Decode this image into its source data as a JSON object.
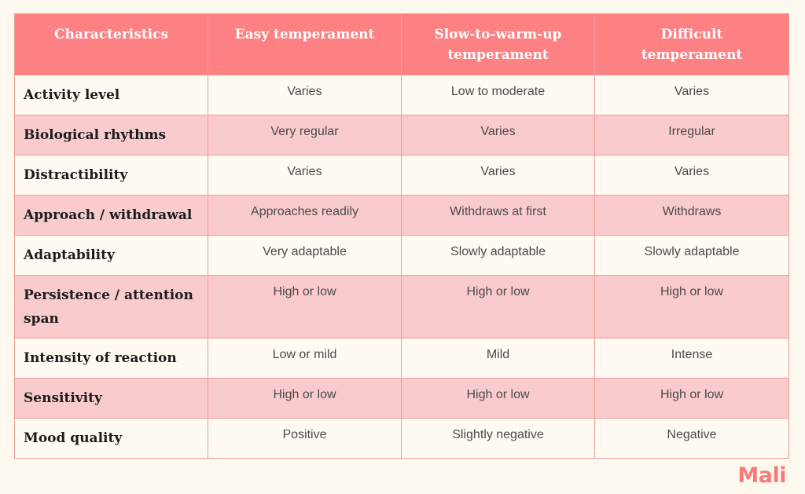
{
  "table": {
    "headers": [
      "Characteristics",
      "Easy temperament",
      "Slow-to-warm-up temperament",
      "Difficult temperament"
    ],
    "rows": [
      {
        "characteristic": "Activity level",
        "easy": "Varies",
        "slow": "Low to moderate",
        "difficult": "Varies"
      },
      {
        "characteristic": "Biological rhythms",
        "easy": "Very regular",
        "slow": "Varies",
        "difficult": "Irregular"
      },
      {
        "characteristic": "Distractibility",
        "easy": "Varies",
        "slow": "Varies",
        "difficult": "Varies"
      },
      {
        "characteristic": "Approach / withdrawal",
        "easy": "Approaches readily",
        "slow": "Withdraws at first",
        "difficult": "Withdraws"
      },
      {
        "characteristic": "Adaptability",
        "easy": "Very adaptable",
        "slow": "Slowly adaptable",
        "difficult": "Slowly adaptable"
      },
      {
        "characteristic": "Persistence / attention span",
        "easy": "High or low",
        "slow": "High or low",
        "difficult": "High or low"
      },
      {
        "characteristic": "Intensity of reaction",
        "easy": "Low or mild",
        "slow": "Mild",
        "difficult": "Intense"
      },
      {
        "characteristic": "Sensitivity",
        "easy": "High or low",
        "slow": "High or low",
        "difficult": "High or low"
      },
      {
        "characteristic": "Mood quality",
        "easy": "Positive",
        "slow": "Slightly negative",
        "difficult": "Negative"
      }
    ]
  },
  "brand": {
    "logo_text": "Mali"
  },
  "colors": {
    "header_bg": "#fd8182",
    "row_alt_bg": "#f9cbcc",
    "row_bg": "#fffbf3",
    "page_bg": "#fef9ef",
    "logo": "#f97a7a"
  }
}
